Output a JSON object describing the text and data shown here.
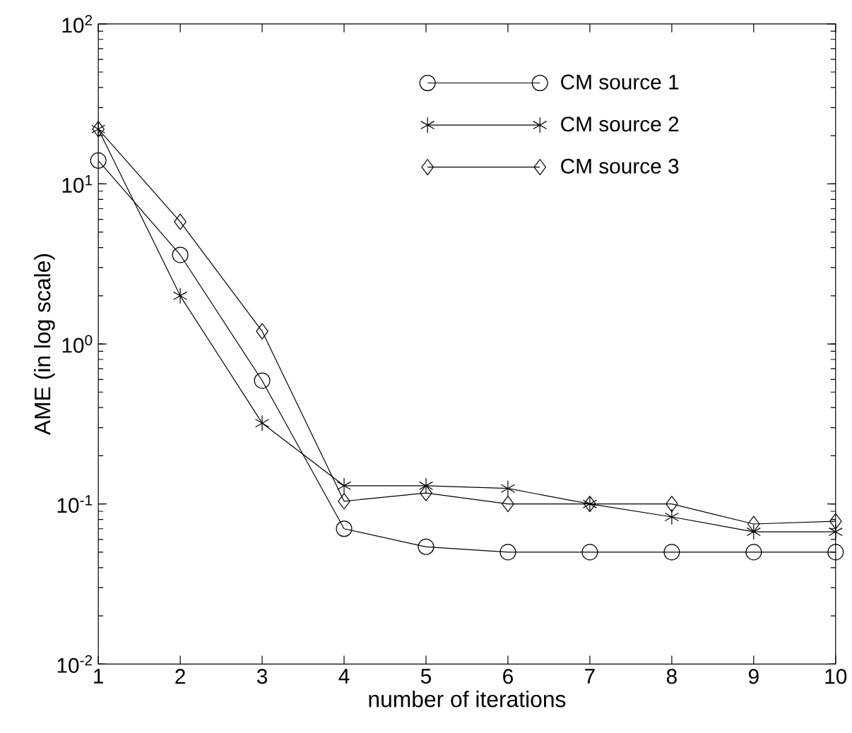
{
  "chart_data": {
    "type": "line",
    "xlabel": "number of iterations",
    "ylabel": "AME (in log scale)",
    "x": [
      1,
      2,
      3,
      4,
      5,
      6,
      7,
      8,
      9,
      10
    ],
    "series": [
      {
        "name": "CM source 1",
        "color": "#000000",
        "marker": "circle",
        "values": [
          14,
          3.6,
          0.59,
          0.07,
          0.054,
          0.05,
          0.05,
          0.05,
          0.05,
          0.05
        ]
      },
      {
        "name": "CM source 2",
        "color": "#000000",
        "marker": "cross",
        "values": [
          22,
          2.0,
          0.32,
          0.13,
          0.13,
          0.125,
          0.1,
          0.083,
          0.067,
          0.067
        ]
      },
      {
        "name": "CM source 3",
        "color": "#000000",
        "marker": "diamond",
        "values": [
          22,
          5.8,
          1.2,
          0.104,
          0.117,
          0.1,
          0.1,
          0.1,
          0.075,
          0.078
        ]
      }
    ],
    "log": "y",
    "xlim": [
      1,
      10
    ],
    "ylim": [
      0.01,
      100
    ],
    "xticks": [
      1,
      2,
      3,
      4,
      5,
      6,
      7,
      8,
      9,
      10
    ],
    "yticks": [
      {
        "value": 0.01,
        "label": "10$^{-2}$"
      },
      {
        "value": 0.1,
        "label": "10$^{-1}$"
      },
      {
        "value": 1,
        "label": "10$^{0}$"
      },
      {
        "value": 10,
        "label": "10$^{1}$"
      },
      {
        "value": 100,
        "label": "10$^{2}$"
      }
    ],
    "legend": "top right",
    "line_style": "solid"
  }
}
